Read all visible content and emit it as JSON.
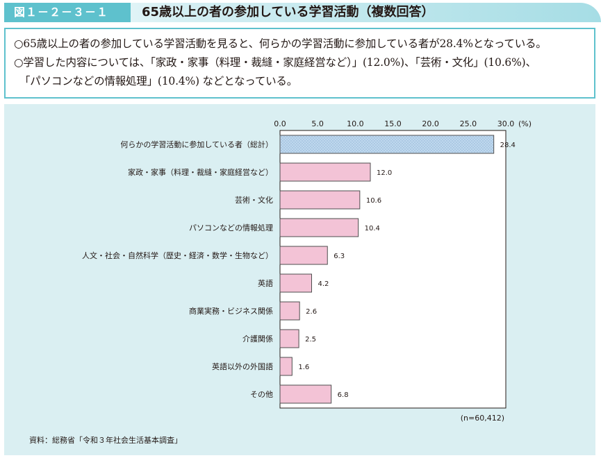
{
  "header": {
    "figure_label": "図１－２－３－１",
    "figure_title": "65歳以上の者の参加している学習活動（複数回答）"
  },
  "summary": {
    "line1": "○65歳以上の者の参加している学習活動を見ると、何らかの学習活動に参加している者が28.4%となっている。",
    "line2": "○学習した内容については、「家政・家事（料理・裁縫・家庭経営など）」(12.0%)、「芸術・文化」(10.6%)、",
    "line3": "「パソコンなどの情報処理」(10.4%) などとなっている。"
  },
  "chart_data": {
    "type": "bar",
    "orientation": "horizontal",
    "categories": [
      "何らかの学習活動に参加している者（総計）",
      "家政・家事（料理・裁縫・家庭経営など）",
      "芸術・文化",
      "パソコンなどの情報処理",
      "人文・社会・自然科学（歴史・経済・数学・生物など）",
      "英語",
      "商業実務・ビジネス関係",
      "介護関係",
      "英語以外の外国語",
      "その他"
    ],
    "values": [
      28.4,
      12.0,
      10.6,
      10.4,
      6.3,
      4.2,
      2.6,
      2.5,
      1.6,
      6.8
    ],
    "value_labels": [
      "28.4",
      "12.0",
      "10.6",
      "10.4",
      "6.3",
      "4.2",
      "2.6",
      "2.5",
      "1.6",
      "6.8"
    ],
    "xlim": [
      0,
      30
    ],
    "ticks": [
      0,
      5,
      10,
      15,
      20,
      25,
      30
    ],
    "tick_labels": [
      "0.0",
      "5.0",
      "10.0",
      "15.0",
      "20.0",
      "25.0",
      "30.0"
    ],
    "unit": "(%)",
    "sample_size": "(n=60,412)",
    "colors": {
      "total_bar": "#bfd8ee",
      "total_dot": "#8fb2d4",
      "bar": "#f3c3d6",
      "bar_border": "#4d4d4d"
    },
    "axis_position": "top",
    "grid": false
  },
  "source": "資料：総務省「令和３年社会生活基本調査」"
}
